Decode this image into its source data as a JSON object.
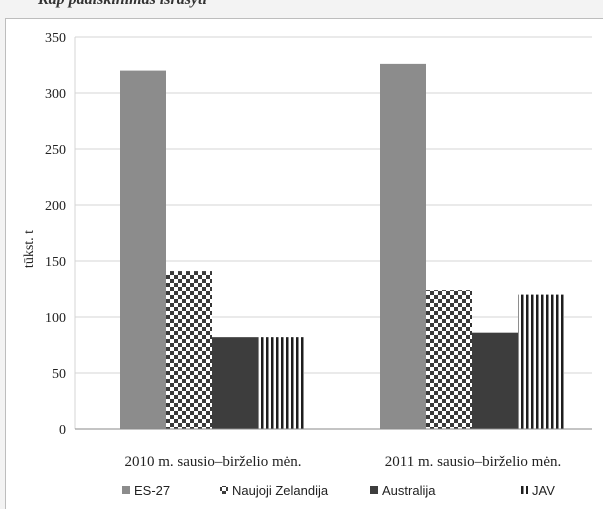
{
  "top_caption": "Kap paaiškinimas išrašyti",
  "chart_data": {
    "type": "bar",
    "categories": [
      "2010 m. sausio–birželio mėn.",
      "2011 m. sausio–birželio mėn."
    ],
    "series": [
      {
        "name": "ES-27",
        "values": [
          320,
          326
        ],
        "color": "#8c8c8c",
        "pattern": "solid-gray"
      },
      {
        "name": "Naujoji Zelandija",
        "values": [
          141,
          124
        ],
        "color": "#555555",
        "pattern": "checker"
      },
      {
        "name": "Australija",
        "values": [
          82,
          86
        ],
        "color": "#3d3d3d",
        "pattern": "solid-dark"
      },
      {
        "name": "JAV",
        "values": [
          82,
          120
        ],
        "color": "#222222",
        "pattern": "vertical-stripes"
      }
    ],
    "title": "",
    "xlabel": "",
    "ylabel": "tūkst. t",
    "ylim": [
      0,
      350
    ],
    "yticks": [
      0,
      50,
      100,
      150,
      200,
      250,
      300,
      350
    ],
    "grid": true,
    "legend": "bottom"
  }
}
